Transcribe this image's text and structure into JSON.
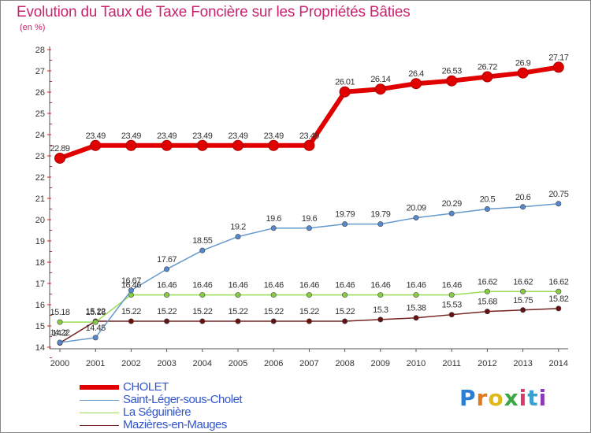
{
  "title": "Evolution du Taux de Taxe Foncière sur les Propriétés Bâties",
  "subtitle": "(en %)",
  "logo_letters": [
    "P",
    "r",
    "o",
    "x",
    "i",
    "t",
    "i"
  ],
  "logo_colors": [
    "#2a7fd4",
    "#e07a1a",
    "#e0b81a",
    "#3aa840",
    "#d83a6a",
    "#3aa0d0",
    "#8a3ab8"
  ],
  "chart_data": {
    "type": "line",
    "title": "Evolution du Taux de Taxe Foncière sur les Propriétés Bâties",
    "ylabel": "(en %)",
    "xlabel": "",
    "ylim": [
      14,
      28
    ],
    "yticks": [
      14,
      15,
      16,
      17,
      18,
      19,
      20,
      21,
      22,
      23,
      24,
      25,
      26,
      27,
      28
    ],
    "x": [
      2000,
      2001,
      2002,
      2003,
      2004,
      2005,
      2006,
      2007,
      2008,
      2009,
      2010,
      2011,
      2012,
      2013,
      2014
    ],
    "series": [
      {
        "name": "CHOLET",
        "color": "#e00000",
        "marker_color": "#e00000",
        "values": [
          22.89,
          23.49,
          23.49,
          23.49,
          23.49,
          23.49,
          23.49,
          23.49,
          26.01,
          26.14,
          26.4,
          26.53,
          26.72,
          26.9,
          27.17
        ],
        "labels": [
          "22.89",
          "23.49",
          "23.49",
          "23.49",
          "23.49",
          "23.49",
          "23.49",
          "23.49",
          "26.01",
          "26.14",
          "26.4",
          "26.53",
          "26.72",
          "26.9",
          "27.17"
        ]
      },
      {
        "name": "Saint-Léger-sous-Cholet",
        "color": "#6699cc",
        "marker_color": "#5588cc",
        "values": [
          14.22,
          14.45,
          16.67,
          17.67,
          18.55,
          19.2,
          19.6,
          19.6,
          19.79,
          19.79,
          20.09,
          20.29,
          20.5,
          20.6,
          20.75
        ],
        "labels": [
          "14.22",
          "14.45",
          "16.67",
          "17.67",
          "18.55",
          "19.2",
          "19.6",
          "19.6",
          "19.79",
          "19.79",
          "20.09",
          "20.29",
          "20.5",
          "20.6",
          "20.75"
        ]
      },
      {
        "name": "La Séguinière",
        "color": "#99dd55",
        "marker_color": "#88cc44",
        "values": [
          15.18,
          15.18,
          16.46,
          16.46,
          16.46,
          16.46,
          16.46,
          16.46,
          16.46,
          16.46,
          16.46,
          16.46,
          16.62,
          16.62,
          16.62
        ],
        "labels": [
          "15.18",
          "15.18",
          "16.46",
          "16.46",
          "16.46",
          "16.46",
          "16.46",
          "16.46",
          "16.46",
          "16.46",
          "16.46",
          "16.46",
          "16.62",
          "16.62",
          "16.62"
        ]
      },
      {
        "name": "Mazières-en-Mauges",
        "color": "#772222",
        "marker_color": "#661111",
        "values": [
          14.2,
          15.22,
          15.22,
          15.22,
          15.22,
          15.22,
          15.22,
          15.22,
          15.22,
          15.3,
          15.38,
          15.53,
          15.68,
          15.75,
          15.82
        ],
        "labels": [
          "14.2",
          "15.22",
          "15.22",
          "15.22",
          "15.22",
          "15.22",
          "15.22",
          "15.22",
          "15.22",
          "15.3",
          "15.38",
          "15.53",
          "15.68",
          "15.75",
          "15.82"
        ]
      }
    ],
    "legend": [
      "CHOLET",
      "Saint-Léger-sous-Cholet",
      "La Séguinière",
      "Mazières-en-Mauges"
    ],
    "legend_position": "bottom-left",
    "grid": false
  }
}
